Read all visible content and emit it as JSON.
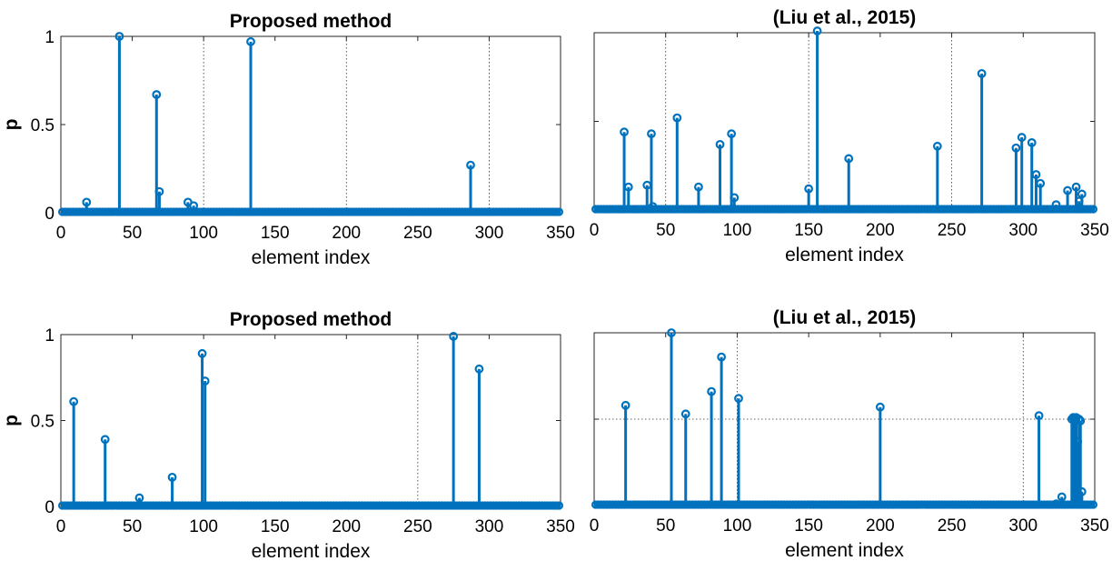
{
  "chart_data": [
    {
      "type": "stem",
      "title": "Proposed method",
      "xlabel": "element index",
      "ylabel": "p",
      "xlim": [
        0,
        350
      ],
      "ylim": [
        0,
        1
      ],
      "xticks": [
        0,
        50,
        100,
        150,
        200,
        250,
        300,
        350
      ],
      "yticks": [
        0,
        0.5,
        1
      ],
      "ytick_labels": [
        "0",
        "0.5",
        "1"
      ],
      "grid_x": [
        100,
        200,
        300
      ],
      "grid_y": [],
      "color": "#0072BD",
      "x": [
        18,
        41,
        67,
        69,
        89,
        93,
        133,
        287
      ],
      "y": [
        0.06,
        1.0,
        0.67,
        0.12,
        0.06,
        0.04,
        0.97,
        0.27
      ]
    },
    {
      "type": "stem",
      "title": "(Liu et al., 2015)",
      "xlabel": "element index",
      "ylabel": "",
      "xlim": [
        0,
        350
      ],
      "ylim": [
        0,
        1
      ],
      "xticks": [
        0,
        50,
        100,
        150,
        200,
        250,
        300,
        350
      ],
      "yticks": [
        0,
        0.5,
        1
      ],
      "ytick_labels": [
        "",
        "",
        ""
      ],
      "grid_x": [
        50,
        150,
        250
      ],
      "grid_y": [],
      "color": "#0072BD",
      "x": [
        21,
        24,
        37,
        40,
        41,
        58,
        73,
        88,
        96,
        98,
        150,
        156,
        178,
        240,
        271,
        295,
        299,
        306,
        309,
        312,
        323,
        331,
        337,
        339,
        341
      ],
      "y": [
        0.44,
        0.13,
        0.14,
        0.43,
        0.02,
        0.52,
        0.13,
        0.37,
        0.43,
        0.07,
        0.12,
        1.01,
        0.29,
        0.36,
        0.77,
        0.35,
        0.41,
        0.38,
        0.2,
        0.15,
        0.03,
        0.11,
        0.13,
        0.05,
        0.09
      ]
    },
    {
      "type": "stem",
      "title": "Proposed method",
      "xlabel": "element index",
      "ylabel": "p",
      "xlim": [
        0,
        350
      ],
      "ylim": [
        0,
        1
      ],
      "xticks": [
        0,
        50,
        100,
        150,
        200,
        250,
        300,
        350
      ],
      "yticks": [
        0,
        0.5,
        1
      ],
      "ytick_labels": [
        "0",
        "0.5",
        "1"
      ],
      "grid_x": [
        250
      ],
      "grid_y": [],
      "color": "#0072BD",
      "x": [
        9,
        31,
        55,
        78,
        99,
        101,
        275,
        293
      ],
      "y": [
        0.61,
        0.39,
        0.05,
        0.17,
        0.89,
        0.73,
        0.99,
        0.8
      ]
    },
    {
      "type": "stem",
      "title": "(Liu et al., 2015)",
      "xlabel": "element index",
      "ylabel": "",
      "xlim": [
        0,
        350
      ],
      "ylim": [
        0,
        1
      ],
      "xticks": [
        0,
        50,
        100,
        150,
        200,
        250,
        300,
        350
      ],
      "yticks": [
        0,
        0.5,
        1
      ],
      "ytick_labels": [
        "",
        "",
        ""
      ],
      "grid_x": [
        100,
        300
      ],
      "grid_y": [
        0.5
      ],
      "color": "#0072BD",
      "x": [
        22,
        54,
        64,
        82,
        89,
        101,
        200,
        311,
        323,
        327,
        334,
        335,
        336,
        337,
        338,
        339,
        340,
        341
      ],
      "y": [
        0.58,
        1.0,
        0.53,
        0.66,
        0.86,
        0.62,
        0.57,
        0.52,
        0.01,
        0.05,
        0.5,
        0.51,
        0.5,
        0.51,
        0.37,
        0.5,
        0.49,
        0.08
      ]
    }
  ]
}
